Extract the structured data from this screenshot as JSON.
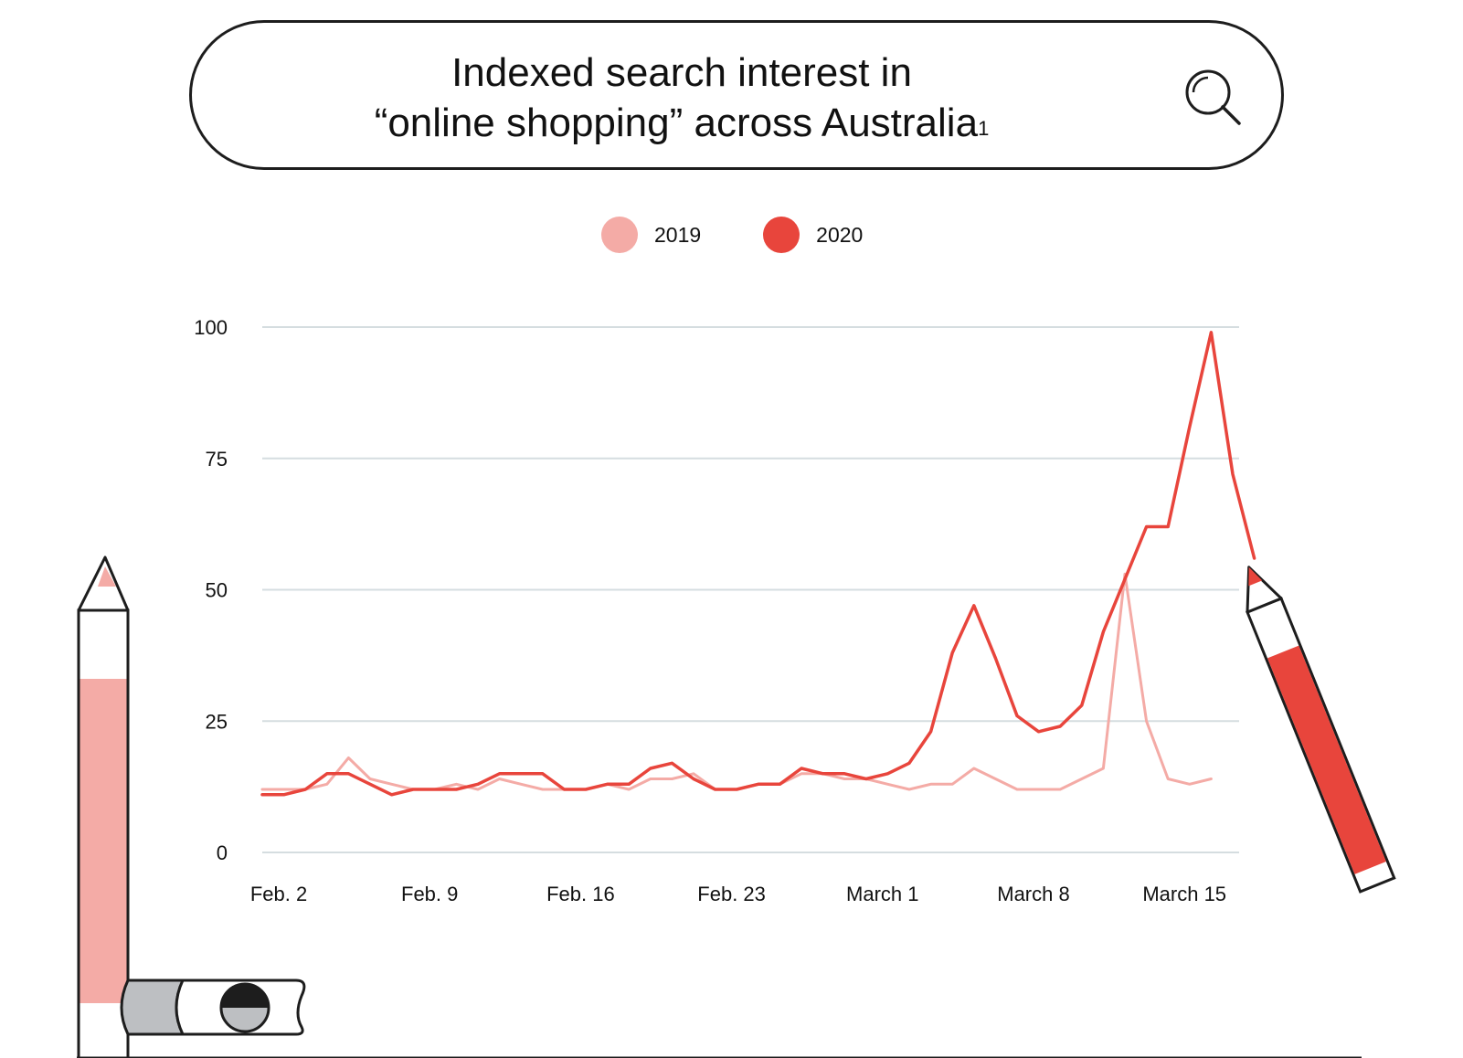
{
  "title": {
    "line1": "Indexed search interest in",
    "line2": "“online shopping” across Australia",
    "footnote": "1"
  },
  "icons": {
    "search": "search-icon",
    "pencil_left": "pencil-icon",
    "pencil_right": "pencil-icon",
    "eraser": "eraser-icon"
  },
  "colors": {
    "series_2019": "#f4aba6",
    "series_2020": "#e8453c",
    "grid": "#d5dde0",
    "outline": "#1d1d1d"
  },
  "chart_data": {
    "type": "line",
    "x_tick_labels": [
      "Feb. 2",
      "Feb. 9",
      "Feb. 16",
      "Feb. 23",
      "March 1",
      "March 8",
      "March 15"
    ],
    "ylim": [
      0,
      100
    ],
    "yticks": [
      0,
      25,
      50,
      75,
      100
    ],
    "grid": true,
    "legend_position": "top-center",
    "series": [
      {
        "name": "2019",
        "color": "#f4aba6",
        "values": [
          12,
          12,
          12,
          13,
          18,
          14,
          13,
          12,
          12,
          13,
          12,
          14,
          13,
          12,
          12,
          12,
          13,
          12,
          14,
          14,
          15,
          12,
          12,
          13,
          13,
          15,
          15,
          14,
          14,
          13,
          12,
          13,
          13,
          16,
          14,
          12,
          12,
          12,
          14,
          16,
          53,
          25,
          14,
          13,
          14
        ]
      },
      {
        "name": "2020",
        "color": "#e8453c",
        "values": [
          11,
          11,
          12,
          15,
          15,
          13,
          11,
          12,
          12,
          12,
          13,
          15,
          15,
          15,
          12,
          12,
          13,
          13,
          16,
          17,
          14,
          12,
          12,
          13,
          13,
          16,
          15,
          15,
          14,
          15,
          17,
          23,
          38,
          47,
          37,
          26,
          23,
          24,
          28,
          42,
          52,
          62,
          62,
          81,
          99,
          72,
          56
        ]
      }
    ]
  }
}
